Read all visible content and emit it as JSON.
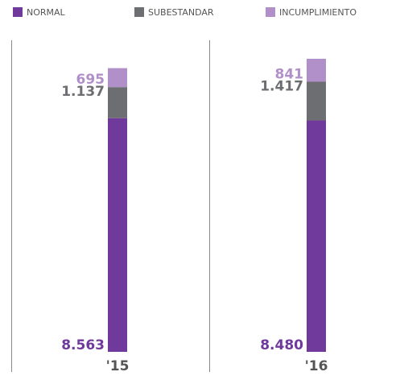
{
  "chart_data": {
    "type": "bar",
    "stacked": true,
    "categories": [
      "'15",
      "'16"
    ],
    "series": [
      {
        "name": "NORMAL",
        "color": "#6f3a9b",
        "values": [
          8563,
          8480
        ],
        "value_labels": [
          "8.563",
          "8.480"
        ]
      },
      {
        "name": "SUBESTANDAR",
        "color": "#6d6e71",
        "values": [
          1137,
          1417
        ],
        "value_labels": [
          "1.137",
          "1.417"
        ]
      },
      {
        "name": "INCUMPLIMIENTO",
        "color": "#b18fc8",
        "values": [
          695,
          841
        ],
        "value_labels": [
          "695",
          "841"
        ]
      }
    ]
  }
}
